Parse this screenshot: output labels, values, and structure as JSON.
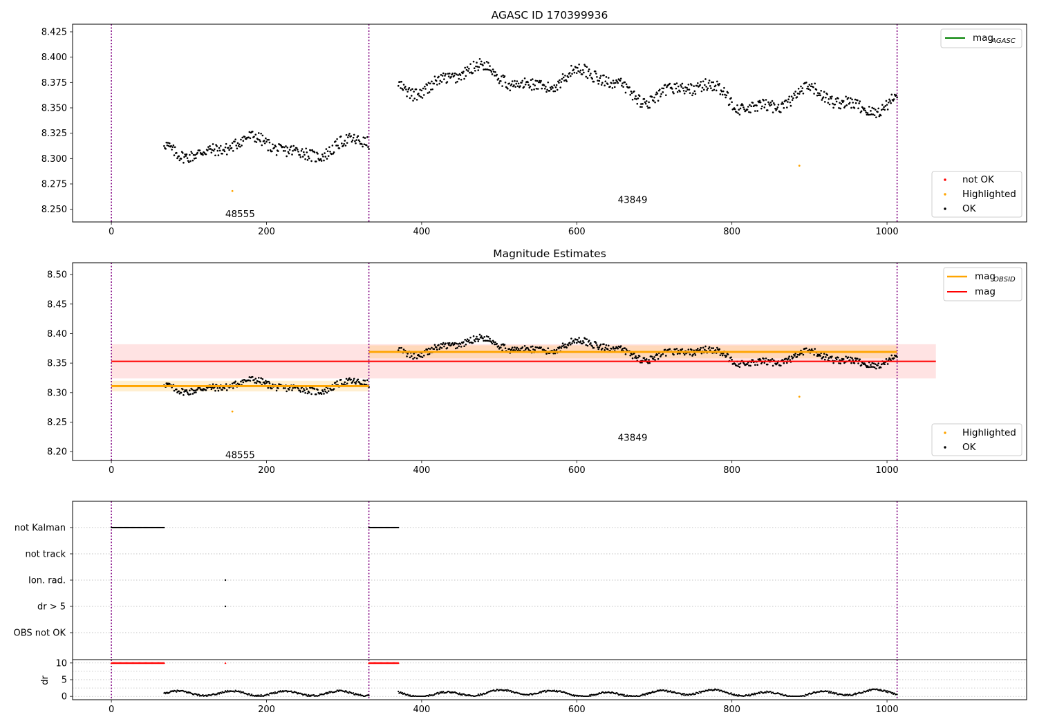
{
  "chart_data": [
    {
      "type": "scatter",
      "title": "AGASC ID 170399936",
      "xlim": [
        -50,
        1180
      ],
      "ylim": [
        8.2375,
        8.4325
      ],
      "x_ticks": [
        0,
        200,
        400,
        600,
        800,
        1000
      ],
      "y_ticks": [
        8.25,
        8.275,
        8.3,
        8.325,
        8.35,
        8.375,
        8.4,
        8.425
      ],
      "vlines": [
        0,
        332,
        1013
      ],
      "annotations": [
        {
          "text": "48555",
          "x": 166,
          "y": 8.245
        },
        {
          "text": "43849",
          "x": 672,
          "y": 8.259
        }
      ],
      "segments": [
        {
          "x_start": 68,
          "x_end": 332,
          "level": 8.311,
          "wave_amplitude": 0.011
        },
        {
          "x_start": 370,
          "x_end": 1013,
          "level": 8.368,
          "wave_amplitude": 0.014
        }
      ],
      "highlighted_points": [
        {
          "x": 156,
          "y": 8.268
        },
        {
          "x": 887,
          "y": 8.293
        }
      ],
      "legends": [
        {
          "position": "upper right",
          "entries": [
            {
              "label": "mag",
              "sub": "AGASC",
              "color": "#008000",
              "kind": "line"
            }
          ]
        },
        {
          "position": "lower right",
          "entries": [
            {
              "label": "not OK",
              "color": "#ff0000",
              "kind": "dot"
            },
            {
              "label": "Highlighted",
              "color": "#ffa500",
              "kind": "dot"
            },
            {
              "label": "OK",
              "color": "#000000",
              "kind": "dot"
            }
          ]
        }
      ]
    },
    {
      "type": "scatter",
      "title": "Magnitude Estimates",
      "xlim": [
        -50,
        1180
      ],
      "ylim": [
        8.185,
        8.52
      ],
      "x_ticks": [
        0,
        200,
        400,
        600,
        800,
        1000
      ],
      "y_ticks": [
        8.2,
        8.25,
        8.3,
        8.35,
        8.4,
        8.45,
        8.5
      ],
      "vlines": [
        0,
        332,
        1013
      ],
      "mag": {
        "value": 8.353,
        "band": [
          8.324,
          8.382
        ],
        "x_range": [
          0,
          1063
        ],
        "color": "#ff0000"
      },
      "mag_obsid": [
        {
          "x_range": [
            0,
            332
          ],
          "value": 8.311,
          "band": [
            8.302,
            8.32
          ]
        },
        {
          "x_range": [
            332,
            1013
          ],
          "value": 8.369,
          "band": [
            8.358,
            8.38
          ]
        }
      ],
      "annotations": [
        {
          "text": "48555",
          "x": 166,
          "y": 8.194
        },
        {
          "text": "43849",
          "x": 672,
          "y": 8.223
        }
      ],
      "highlighted_points": [
        {
          "x": 156,
          "y": 8.268
        },
        {
          "x": 887,
          "y": 8.293
        }
      ],
      "legends": [
        {
          "position": "upper right",
          "entries": [
            {
              "label": "mag",
              "sub": "OBSID",
              "color": "#ffa500",
              "kind": "line"
            },
            {
              "label": "mag",
              "sub": "",
              "color": "#ff0000",
              "kind": "line"
            }
          ]
        },
        {
          "position": "lower right",
          "entries": [
            {
              "label": "Highlighted",
              "color": "#ffa500",
              "kind": "dot"
            },
            {
              "label": "OK",
              "color": "#000000",
              "kind": "dot"
            }
          ]
        }
      ]
    },
    {
      "type": "scatter",
      "title": "",
      "xlim": [
        -50,
        1180
      ],
      "categories": [
        "not Kalman",
        "not track",
        "Ion. rad.",
        "dr > 5",
        "OBS not OK"
      ],
      "flags": [
        {
          "category": "not Kalman",
          "x_ranges": [
            [
              0,
              68
            ],
            [
              332,
              370
            ]
          ]
        },
        {
          "category": "Ion. rad.",
          "x_points": [
            147
          ]
        },
        {
          "category": "dr > 5",
          "x_points": [
            147
          ]
        }
      ],
      "vlines": [
        0,
        332,
        1013
      ]
    },
    {
      "type": "scatter",
      "title": "",
      "ylabel": "dr",
      "xlim": [
        -50,
        1180
      ],
      "ylim": [
        -1,
        11
      ],
      "x_ticks": [
        0,
        200,
        400,
        600,
        800,
        1000
      ],
      "y_ticks": [
        0,
        5,
        10
      ],
      "clipped_at_10": [
        {
          "x_range": [
            0,
            68
          ]
        },
        {
          "x_range": [
            332,
            370
          ]
        },
        {
          "x_point": 147
        }
      ],
      "vlines": [
        0,
        332,
        1013
      ]
    }
  ]
}
